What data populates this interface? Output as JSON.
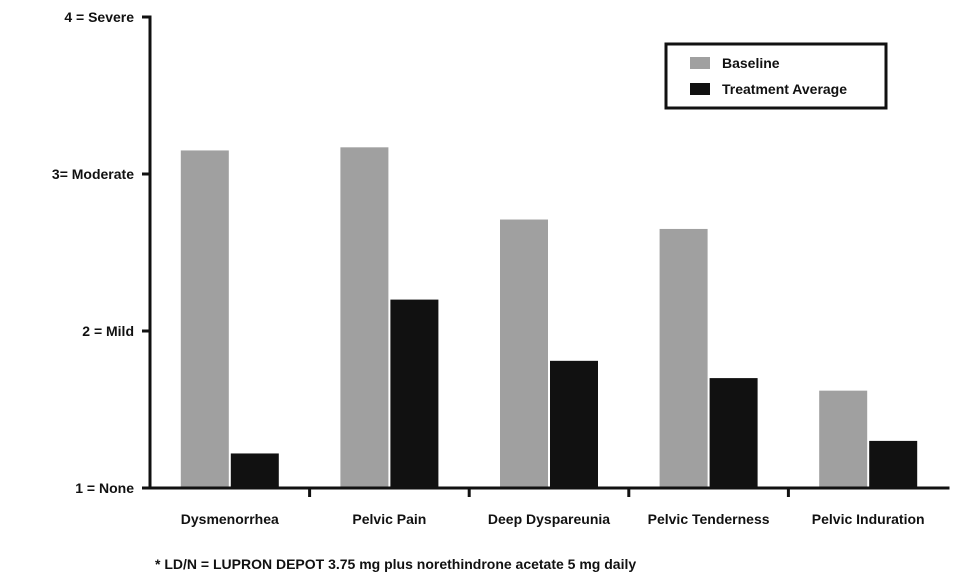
{
  "chart_data": {
    "type": "bar",
    "categories": [
      "Dysmenorrhea",
      "Pelvic Pain",
      "Deep Dyspareunia",
      "Pelvic Tenderness",
      "Pelvic Induration"
    ],
    "series": [
      {
        "name": "Baseline",
        "values": [
          3.15,
          3.17,
          2.71,
          2.65,
          1.62
        ],
        "color": "#a0a0a0"
      },
      {
        "name": "Treatment Average",
        "values": [
          1.22,
          2.2,
          1.81,
          1.7,
          1.3
        ],
        "color": "#111111"
      }
    ],
    "yticks": [
      {
        "value": 1,
        "label": "1 = None"
      },
      {
        "value": 2,
        "label": "2 = Mild"
      },
      {
        "value": 3,
        "label": "3= Moderate"
      },
      {
        "value": 4,
        "label": "4 = Severe"
      }
    ],
    "ylim": [
      1,
      4
    ],
    "title": "",
    "xlabel": "",
    "ylabel": "",
    "grid": false,
    "legend_position": "top-right",
    "footnote": "* LD/N = LUPRON DEPOT 3.75 mg plus norethindrone acetate 5 mg daily",
    "axis_color": "#111111"
  }
}
